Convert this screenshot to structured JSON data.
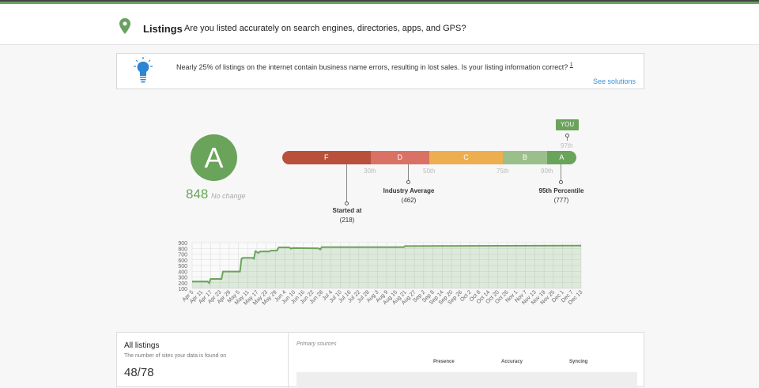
{
  "header": {
    "title": "Listings",
    "subtitle": "Are you listed accurately on search engines, directories, apps, and GPS?",
    "icon": "map-pin-icon",
    "accent": "#6aa060"
  },
  "info": {
    "text": "Nearly 25% of listings on the internet contain business name errors, resulting in lost sales. Is your listing information correct?",
    "footnote": "1",
    "link": "See solutions",
    "icon": "lightbulb-icon"
  },
  "grade": {
    "letter": "A",
    "score": "848",
    "change": "No change",
    "color": "#6aa35a"
  },
  "scale": {
    "segments": [
      {
        "label": "F",
        "color": "#b9503c",
        "from": 0,
        "to": 30
      },
      {
        "label": "D",
        "color": "#d97264",
        "from": 30,
        "to": 50
      },
      {
        "label": "C",
        "color": "#edae50",
        "from": 50,
        "to": 75
      },
      {
        "label": "B",
        "color": "#9bbf8a",
        "from": 75,
        "to": 90
      },
      {
        "label": "A",
        "color": "#6aa35a",
        "from": 90,
        "to": 100
      }
    ],
    "ticks": [
      "30th",
      "50th",
      "75th",
      "90th"
    ],
    "you": {
      "label": "YOU",
      "percentile": "97th"
    },
    "markers": [
      {
        "label": "Started at",
        "value": "(218)"
      },
      {
        "label": "Industry Average",
        "value": "(462)"
      },
      {
        "label": "95th Percentile",
        "value": "(777)"
      }
    ]
  },
  "chart_data": {
    "type": "area",
    "yticks": [
      100,
      200,
      300,
      400,
      500,
      600,
      700,
      800,
      900
    ],
    "ylim": [
      100,
      900
    ],
    "grid": true,
    "color": "#6aa35a",
    "xticks": [
      "Apr 5",
      "Apr 11",
      "Apr 17",
      "Apr 23",
      "Apr 29",
      "May 5",
      "May 11",
      "May 17",
      "May 23",
      "May 29",
      "Jun 4",
      "Jun 10",
      "Jun 16",
      "Jun 22",
      "Jun 28",
      "Jul 4",
      "Jul 10",
      "Jul 16",
      "Jul 22",
      "Jul 28",
      "Aug 3",
      "Aug 9",
      "Aug 15",
      "Aug 21",
      "Aug 27",
      "Sep 2",
      "Sep 8",
      "Sep 14",
      "Sep 20",
      "Sep 26",
      "Oct 2",
      "Oct 8",
      "Oct 14",
      "Oct 20",
      "Oct 26",
      "Nov 1",
      "Nov 7",
      "Nov 13",
      "Nov 19",
      "Nov 25",
      "Dec 1",
      "Dec 7",
      "Dec 13"
    ],
    "points": [
      [
        "Apr 5",
        220
      ],
      [
        "Apr 15",
        220
      ],
      [
        "Apr 16",
        195
      ],
      [
        "Apr 17",
        265
      ],
      [
        "Apr 24",
        265
      ],
      [
        "Apr 25",
        395
      ],
      [
        "May 6",
        395
      ],
      [
        "May 7",
        620
      ],
      [
        "May 8",
        635
      ],
      [
        "May 14",
        635
      ],
      [
        "May 15",
        620
      ],
      [
        "May 16",
        750
      ],
      [
        "May 18",
        720
      ],
      [
        "May 19",
        745
      ],
      [
        "May 25",
        745
      ],
      [
        "May 26",
        760
      ],
      [
        "May 30",
        760
      ],
      [
        "May 31",
        815
      ],
      [
        "Jun 7",
        815
      ],
      [
        "Jun 8",
        795
      ],
      [
        "Jun 9",
        805
      ],
      [
        "Jun 26",
        800
      ],
      [
        "Jun 27",
        780
      ],
      [
        "Jun 28",
        820
      ],
      [
        "Aug 20",
        820
      ],
      [
        "Aug 21",
        840
      ],
      [
        "Dec 13",
        848
      ]
    ]
  },
  "card": {
    "title": "All listings",
    "subtitle": "The number of sites your data is found on",
    "count": "48/78",
    "primary": "Primary sources",
    "columns": [
      "Presence",
      "Accuracy",
      "Syncing"
    ]
  }
}
